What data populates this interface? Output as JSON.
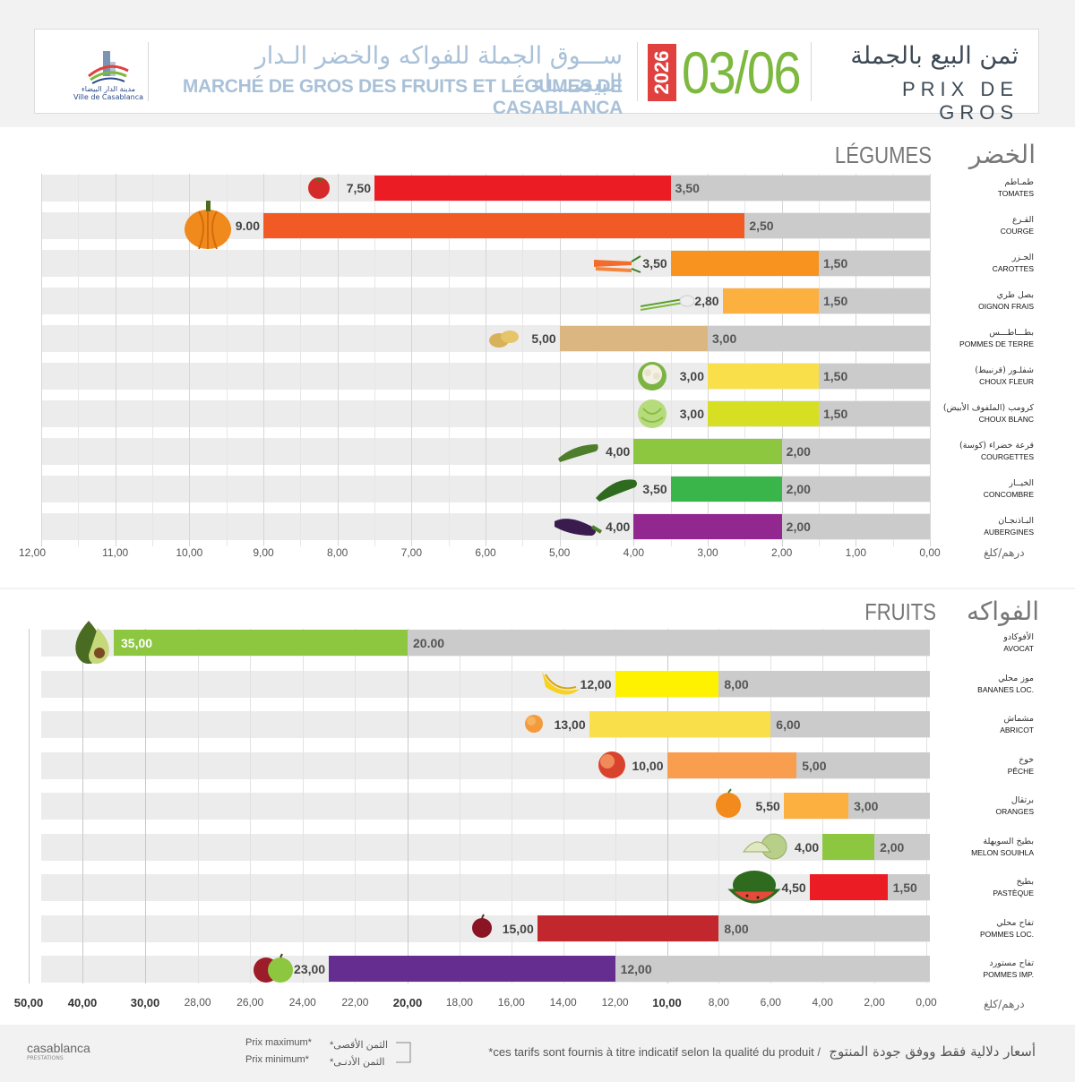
{
  "header": {
    "logo_ar": "مدينة الدار البيضاء",
    "logo_fr": "Ville de Casablanca",
    "market_ar": "ســـوق الجملة للفواكه والخضر الـدار البيضـــاء",
    "market_fr": "MARCHÉ DE GROS DES FRUITS ET LÉGUMES DE CASABLANCA",
    "year": "2026",
    "date": "03/06",
    "prix_ar": "ثمن البيع بالجملة",
    "prix_fr": "PRIX DE GROS"
  },
  "colors": {
    "min_bar": "#cbcbcb",
    "stripe": "#ededed",
    "accent_green": "#7cb93e",
    "accent_red": "#e0413f"
  },
  "chart_data": [
    {
      "type": "bar",
      "orientation": "horizontal-reversed",
      "title_fr": "LÉGUMES",
      "title_ar": "الخضر",
      "unit": "درهم/كلغ",
      "xlim": [
        0,
        12
      ],
      "ticks": [
        "12,00",
        "11,00",
        "10,00",
        "9,00",
        "8,00",
        "7,00",
        "6,00",
        "5,00",
        "4,00",
        "3,00",
        "2,00",
        "1,00",
        "0,00"
      ],
      "tick_values": [
        12,
        11,
        10,
        9,
        8,
        7,
        6,
        5,
        4,
        3,
        2,
        1,
        0
      ],
      "items": [
        {
          "name_ar": "طمـاطم",
          "name_fr": "TOMATES",
          "max": 7.5,
          "min": 3.5,
          "max_label": "7,50",
          "min_label": "3,50",
          "color": "#ec1c24",
          "icon": "tomato-icon"
        },
        {
          "name_ar": "القـرع",
          "name_fr": "COURGE",
          "max": 9.0,
          "min": 2.5,
          "max_label": "9.00",
          "min_label": "2,50",
          "color": "#f15a24",
          "icon": "pumpkin-icon"
        },
        {
          "name_ar": "الجـزر",
          "name_fr": "CAROTTES",
          "max": 3.5,
          "min": 1.5,
          "max_label": "3,50",
          "min_label": "1,50",
          "color": "#f7931e",
          "icon": "carrot-icon"
        },
        {
          "name_ar": "بصل طري",
          "name_fr": "OIGNON FRAIS",
          "max": 2.8,
          "min": 1.5,
          "max_label": "2,80",
          "min_label": "1,50",
          "color": "#fbb040",
          "icon": "onion-icon"
        },
        {
          "name_ar": "بطـــاطـــس",
          "name_fr": "POMMES DE TERRE",
          "max": 5.0,
          "min": 3.0,
          "max_label": "5,00",
          "min_label": "3,00",
          "color": "#dcb680",
          "icon": "potato-icon"
        },
        {
          "name_ar": "شفلـور (قرنبيط)",
          "name_fr": "CHOUX FLEUR",
          "max": 3.0,
          "min": 1.5,
          "max_label": "3,00",
          "min_label": "1,50",
          "color": "#f9e04a",
          "icon": "cauliflower-icon"
        },
        {
          "name_ar": "كرومب (الملفوف الأبيض)",
          "name_fr": "CHOUX BLANC",
          "max": 3.0,
          "min": 1.5,
          "max_label": "3,00",
          "min_label": "1,50",
          "color": "#d7df23",
          "icon": "cabbage-icon"
        },
        {
          "name_ar": "قرعة خضراء (كوسة)",
          "name_fr": "COURGETTES",
          "max": 4.0,
          "min": 2.0,
          "max_label": "4,00",
          "min_label": "2,00",
          "color": "#8dc63f",
          "icon": "zucchini-icon"
        },
        {
          "name_ar": "الخيــار",
          "name_fr": "CONCOMBRE",
          "max": 3.5,
          "min": 2.0,
          "max_label": "3,50",
          "min_label": "2,00",
          "color": "#39b54a",
          "icon": "cucumber-icon"
        },
        {
          "name_ar": "البـاذنجـان",
          "name_fr": "AUBERGINES",
          "max": 4.0,
          "min": 2.0,
          "max_label": "4,00",
          "min_label": "2,00",
          "color": "#92278f",
          "icon": "eggplant-icon"
        }
      ]
    },
    {
      "type": "bar",
      "orientation": "horizontal-reversed-piecewise",
      "title_fr": "FRUITS",
      "title_ar": "الفواكه",
      "unit": "درهم/كلغ",
      "ticks": [
        "50,00",
        "40,00",
        "30,00",
        "28,00",
        "26,00",
        "24,00",
        "22,00",
        "20,00",
        "18,00",
        "16,00",
        "14,00",
        "12,00",
        "10,00",
        "8,00",
        "6,00",
        "4,00",
        "2,00",
        "0,00"
      ],
      "tick_values": [
        50,
        40,
        30,
        28,
        26,
        24,
        22,
        20,
        18,
        16,
        14,
        12,
        10,
        8,
        6,
        4,
        2,
        0
      ],
      "major_ticks": [
        "50,00",
        "40,00",
        "30,00",
        "20,00",
        "10,00"
      ],
      "items": [
        {
          "name_ar": "الأفوكادو",
          "name_fr": "AVOCAT",
          "max": 35.0,
          "min": 20.0,
          "max_label": "35,00",
          "min_label": "20.00",
          "color": "#8dc63f",
          "icon": "avocado-icon"
        },
        {
          "name_ar": "موز محلي",
          "name_fr": "BANANES LOC.",
          "max": 12.0,
          "min": 8.0,
          "max_label": "12,00",
          "min_label": "8,00",
          "color": "#fff200",
          "icon": "banana-icon"
        },
        {
          "name_ar": "مشماش",
          "name_fr": "ABRICOT",
          "max": 13.0,
          "min": 6.0,
          "max_label": "13,00",
          "min_label": "6,00",
          "color": "#f9e04a",
          "icon": "apricot-icon"
        },
        {
          "name_ar": "خوخ",
          "name_fr": "PÊCHE",
          "max": 10.0,
          "min": 5.0,
          "max_label": "10,00",
          "min_label": "5,00",
          "color": "#f99d4e",
          "icon": "peach-icon"
        },
        {
          "name_ar": "برتقال",
          "name_fr": "ORANGES",
          "max": 5.5,
          "min": 3.0,
          "max_label": "5,50",
          "min_label": "3,00",
          "color": "#fbb040",
          "icon": "orange-icon"
        },
        {
          "name_ar": "بطيخ السويهلة",
          "name_fr": "MELON SOUIHLA",
          "max": 4.0,
          "min": 2.0,
          "max_label": "4,00",
          "min_label": "2,00",
          "color": "#8dc63f",
          "icon": "melon-icon"
        },
        {
          "name_ar": "بطيخ",
          "name_fr": "PASTÈQUE",
          "max": 4.5,
          "min": 1.5,
          "max_label": "4,50",
          "min_label": "1,50",
          "color": "#ec1c24",
          "icon": "watermelon-icon"
        },
        {
          "name_ar": "تفاح محلي",
          "name_fr": "POMMES LOC.",
          "max": 15.0,
          "min": 8.0,
          "max_label": "15,00",
          "min_label": "8,00",
          "color": "#c1272d",
          "icon": "apple-red-icon"
        },
        {
          "name_ar": "تفاح مستورد",
          "name_fr": "POMMES IMP.",
          "max": 23.0,
          "min": 12.0,
          "max_label": "23,00",
          "min_label": "12,00",
          "color": "#662d91",
          "icon": "apples-imported-icon"
        }
      ]
    }
  ],
  "footer": {
    "legend_max_fr": "Prix maximum*",
    "legend_min_fr": "Prix minimum*",
    "legend_max_ar": "*الثمن الأقصى",
    "legend_min_ar": "*الثمن الأدنـى",
    "note_fr": "*ces tarifs sont fournis à titre indicatif selon la qualité du produit  /",
    "note_ar": "أسعار دلالية فقط ووفق جودة المنتوج",
    "brand": "casablanca",
    "brand_sub": "PRESTATIONS"
  }
}
